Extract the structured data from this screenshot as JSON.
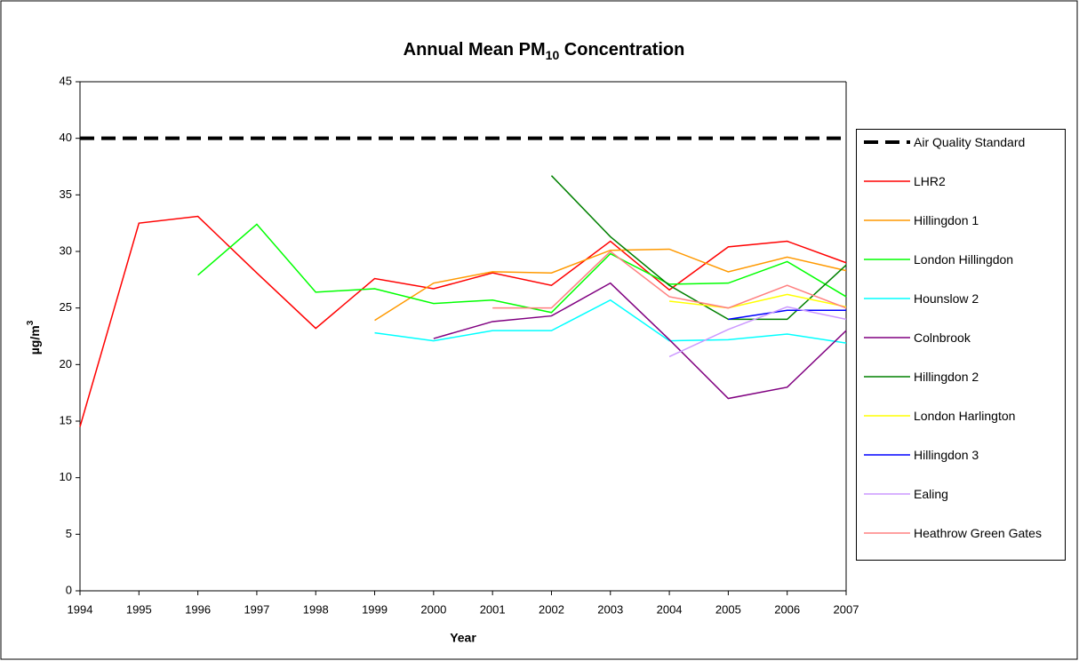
{
  "chart_data": {
    "type": "line",
    "title": [
      "Annual Mean PM",
      "10",
      " Concentration"
    ],
    "x_label": "Year",
    "y_label": [
      "µg/m",
      "3"
    ],
    "x": [
      1994,
      1995,
      1996,
      1997,
      1998,
      1999,
      2000,
      2001,
      2002,
      2003,
      2004,
      2005,
      2006,
      2007
    ],
    "xlim": [
      1994,
      2007
    ],
    "xticks": [
      1994,
      1995,
      1996,
      1997,
      1998,
      1999,
      2000,
      2001,
      2002,
      2003,
      2004,
      2005,
      2006,
      2007
    ],
    "ylim": [
      0,
      45
    ],
    "yticks": [
      0,
      5,
      10,
      15,
      20,
      25,
      30,
      35,
      40,
      45
    ],
    "legend": "right",
    "series": [
      {
        "name": "Air Quality Standard",
        "color": "#000000",
        "dash": true,
        "values": [
          40,
          40,
          40,
          40,
          40,
          40,
          40,
          40,
          40,
          40,
          40,
          40,
          40,
          40
        ]
      },
      {
        "name": "LHR2",
        "color": "#ff0000",
        "values": [
          14.5,
          32.5,
          33.1,
          28.1,
          23.2,
          27.6,
          26.7,
          28.1,
          27.0,
          30.9,
          26.6,
          30.4,
          30.9,
          29.0
        ]
      },
      {
        "name": "Hillingdon 1",
        "color": "#ff9900",
        "values": [
          null,
          null,
          null,
          null,
          null,
          23.9,
          27.2,
          28.2,
          28.1,
          30.1,
          30.2,
          28.2,
          29.5,
          28.3
        ]
      },
      {
        "name": "London Hillingdon",
        "color": "#00ff00",
        "values": [
          null,
          null,
          27.9,
          32.4,
          26.4,
          26.7,
          25.4,
          25.7,
          24.6,
          29.8,
          27.1,
          27.2,
          29.1,
          26.0
        ]
      },
      {
        "name": "Hounslow 2",
        "color": "#00ffff",
        "values": [
          null,
          null,
          null,
          null,
          null,
          22.8,
          22.1,
          23.0,
          23.0,
          25.7,
          22.1,
          22.2,
          22.7,
          21.9
        ]
      },
      {
        "name": "Colnbrook",
        "color": "#800080",
        "values": [
          null,
          null,
          null,
          null,
          null,
          null,
          22.3,
          23.8,
          24.3,
          27.2,
          22.2,
          17.0,
          18.0,
          23.0
        ]
      },
      {
        "name": "Hillingdon 2",
        "color": "#008000",
        "values": [
          null,
          null,
          null,
          null,
          null,
          null,
          null,
          null,
          36.7,
          31.3,
          27.0,
          24.0,
          24.0,
          28.8
        ]
      },
      {
        "name": "London Harlington",
        "color": "#ffff00",
        "values": [
          null,
          null,
          null,
          null,
          null,
          null,
          null,
          null,
          null,
          null,
          25.6,
          25.0,
          26.2,
          25.1
        ]
      },
      {
        "name": "Hillingdon 3",
        "color": "#0000ff",
        "values": [
          null,
          null,
          null,
          null,
          null,
          null,
          null,
          null,
          null,
          null,
          null,
          24.0,
          24.8,
          24.8
        ]
      },
      {
        "name": "Ealing",
        "color": "#cc99ff",
        "values": [
          null,
          null,
          null,
          null,
          null,
          null,
          null,
          null,
          null,
          null,
          20.7,
          23.1,
          25.1,
          24.0
        ]
      },
      {
        "name": "Heathrow Green Gates",
        "color": "#ff8080",
        "values": [
          null,
          null,
          null,
          null,
          null,
          null,
          null,
          25.0,
          25.0,
          30.0,
          26.0,
          25.0,
          27.0,
          25.0
        ]
      }
    ]
  }
}
